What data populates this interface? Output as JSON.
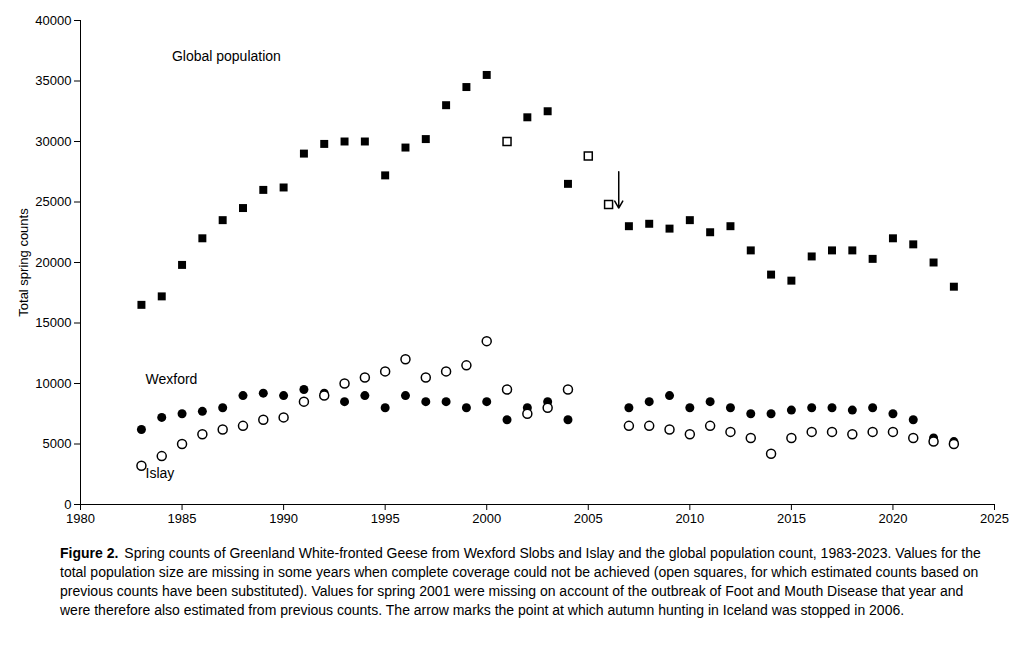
{
  "chart_data": {
    "type": "scatter",
    "ylabel": "Total spring counts",
    "xlim": [
      1980,
      2025
    ],
    "ylim": [
      0,
      40000
    ],
    "xticks": [
      1980,
      1985,
      1990,
      1995,
      2000,
      2005,
      2010,
      2015,
      2020,
      2025
    ],
    "yticks": [
      0,
      5000,
      10000,
      15000,
      20000,
      25000,
      30000,
      35000,
      40000
    ],
    "series": [
      {
        "marker": "filled_square",
        "color": "#000000",
        "x": [
          1983,
          1984,
          1985,
          1986,
          1987,
          1988,
          1989,
          1990,
          1991,
          1992,
          1993,
          1994,
          1995,
          1996,
          1997,
          1998,
          1999,
          2000,
          2002,
          2003,
          2004,
          2007,
          2008,
          2009,
          2010,
          2011,
          2012,
          2013,
          2014,
          2015,
          2016,
          2017,
          2018,
          2019,
          2020,
          2021,
          2022,
          2023
        ],
        "values": [
          16500,
          17200,
          19800,
          22000,
          23500,
          24500,
          26000,
          26200,
          29000,
          29800,
          30000,
          30000,
          27200,
          29500,
          30200,
          33000,
          34500,
          35500,
          32000,
          32500,
          26500,
          23000,
          23200,
          22800,
          23500,
          22500,
          23000,
          21000,
          19000,
          18500,
          20500,
          21000,
          21000,
          20300,
          22000,
          21500,
          20000,
          18000
        ]
      },
      {
        "marker": "open_square",
        "color": "#000000",
        "x": [
          2001,
          2005,
          2006
        ],
        "values": [
          30000,
          28800,
          24800
        ]
      },
      {
        "marker": "filled_circle",
        "color": "#000000",
        "x": [
          1983,
          1984,
          1985,
          1986,
          1987,
          1988,
          1989,
          1990,
          1991,
          1992,
          1993,
          1994,
          1995,
          1996,
          1997,
          1998,
          1999,
          2000,
          2001,
          2002,
          2003,
          2004,
          2007,
          2008,
          2009,
          2010,
          2011,
          2012,
          2013,
          2014,
          2015,
          2016,
          2017,
          2018,
          2019,
          2020,
          2021,
          2022,
          2023
        ],
        "values": [
          6200,
          7200,
          7500,
          7700,
          8000,
          9000,
          9200,
          9000,
          9500,
          9200,
          8500,
          9000,
          8000,
          9000,
          8500,
          8500,
          8000,
          8500,
          7000,
          8000,
          8500,
          7000,
          8000,
          8500,
          9000,
          8000,
          8500,
          8000,
          7500,
          7500,
          7800,
          8000,
          8000,
          7800,
          8000,
          7500,
          7000,
          5500,
          5200
        ]
      },
      {
        "marker": "open_circle",
        "color": "#000000",
        "x": [
          1983,
          1984,
          1985,
          1986,
          1987,
          1988,
          1989,
          1990,
          1991,
          1992,
          1993,
          1994,
          1995,
          1996,
          1997,
          1998,
          1999,
          2000,
          2001,
          2002,
          2003,
          2004,
          2007,
          2008,
          2009,
          2010,
          2011,
          2012,
          2013,
          2014,
          2015,
          2016,
          2017,
          2018,
          2019,
          2020,
          2021,
          2022,
          2023
        ],
        "values": [
          3200,
          4000,
          5000,
          5800,
          6200,
          6500,
          7000,
          7200,
          8500,
          9000,
          10000,
          10500,
          11000,
          12000,
          10500,
          11000,
          11500,
          13500,
          9500,
          7500,
          8000,
          9500,
          6500,
          6500,
          6200,
          5800,
          6500,
          6000,
          5500,
          4200,
          5500,
          6000,
          6000,
          5800,
          6000,
          6000,
          5500,
          5200,
          5000
        ]
      }
    ],
    "arrow": {
      "x": 2006.5,
      "y_start": 27500,
      "y_end": 24500
    },
    "annotations": [
      {
        "text": "Global population",
        "x": 1984.5,
        "y": 37500
      },
      {
        "text": "Wexford",
        "x": 1983.2,
        "y": 10800
      },
      {
        "text": "Islay",
        "x": 1983.2,
        "y": 3000
      }
    ],
    "caption_bold": "Figure 2.",
    "caption": "Spring counts of Greenland White-fronted Geese from Wexford Slobs and Islay and the global population count, 1983-2023. Values for the total population size are missing in some years when complete coverage could not be achieved (open squares, for which estimated counts based on previous counts have been substituted). Values for spring 2001 were missing on account of the outbreak of Foot and Mouth Disease that year and were therefore also estimated from previous counts. The arrow marks the point at which autumn hunting in Iceland was stopped in 2006."
  }
}
